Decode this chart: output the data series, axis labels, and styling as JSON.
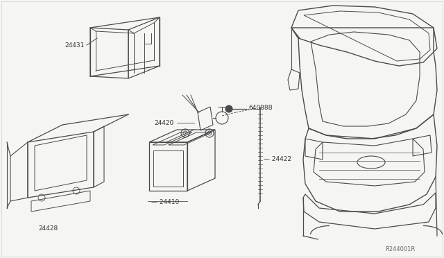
{
  "bg_color": "#f5f5f3",
  "line_color": "#4a4a4a",
  "text_color": "#333333",
  "ref_code": "R244001R",
  "figsize": [
    6.4,
    3.72
  ],
  "dpi": 100
}
